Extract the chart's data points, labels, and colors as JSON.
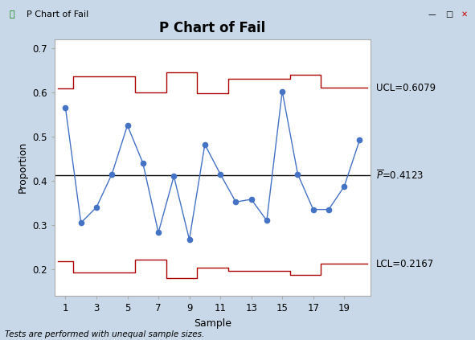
{
  "title": "P Chart of Fail",
  "xlabel": "Sample",
  "ylabel": "Proportion",
  "p_bar": 0.4123,
  "ucl_label": "UCL=0.6079",
  "lcl_label": "LCL=0.2167",
  "pbar_label": "P=0.4123",
  "samples": [
    1,
    2,
    3,
    4,
    5,
    6,
    7,
    8,
    9,
    10,
    11,
    12,
    13,
    14,
    15,
    16,
    17,
    18,
    19,
    20
  ],
  "proportions": [
    0.565,
    0.305,
    0.34,
    0.415,
    0.525,
    0.44,
    0.283,
    0.41,
    0.267,
    0.482,
    0.415,
    0.352,
    0.358,
    0.31,
    0.602,
    0.415,
    0.335,
    0.335,
    0.387,
    0.492
  ],
  "ucl_steps": [
    0.608,
    0.635,
    0.635,
    0.635,
    0.635,
    0.6,
    0.6,
    0.645,
    0.645,
    0.598,
    0.598,
    0.63,
    0.63,
    0.63,
    0.63,
    0.64,
    0.64,
    0.61,
    0.61,
    0.61
  ],
  "lcl_steps": [
    0.218,
    0.192,
    0.192,
    0.192,
    0.192,
    0.222,
    0.222,
    0.18,
    0.18,
    0.204,
    0.204,
    0.197,
    0.197,
    0.197,
    0.197,
    0.188,
    0.188,
    0.212,
    0.212,
    0.212
  ],
  "data_color": "#4472C4",
  "control_color": "#AA0000",
  "pbar_color": "#1F7A1F",
  "outer_bg": "#C8D8E8",
  "plot_bg": "#FFFFFF",
  "titlebar_color": "#A8C0D8",
  "titlebar_text": "P Chart of Fail",
  "ylim": [
    0.14,
    0.72
  ],
  "yticks": [
    0.2,
    0.3,
    0.4,
    0.5,
    0.6,
    0.7
  ],
  "xticks": [
    1,
    3,
    5,
    7,
    9,
    11,
    13,
    15,
    17,
    19
  ],
  "footnote": "Tests are performed with unequal sample sizes.",
  "title_fontsize": 12,
  "label_fontsize": 9,
  "tick_fontsize": 8.5,
  "annot_fontsize": 8.5
}
